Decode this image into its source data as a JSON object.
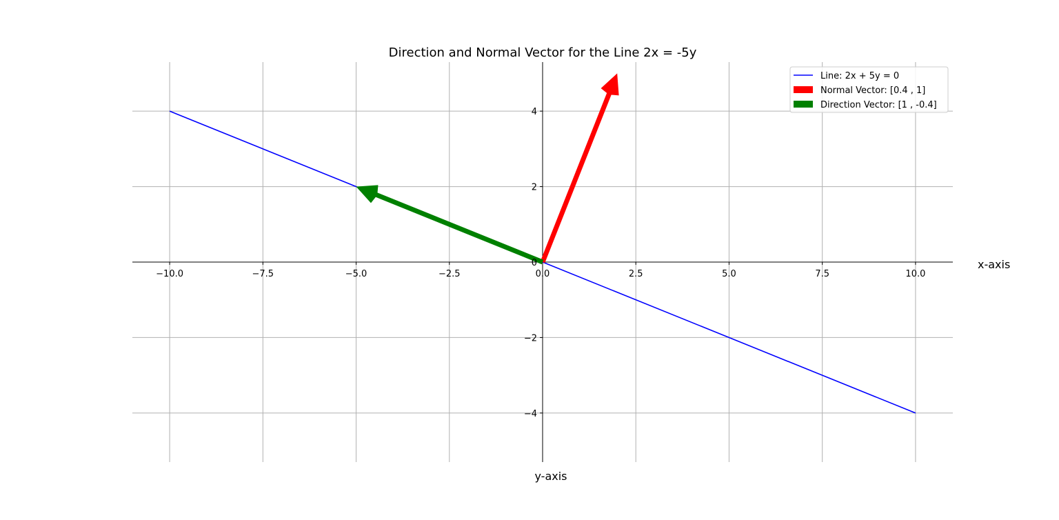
{
  "chart_data": {
    "type": "line",
    "title": "Direction and Normal Vector for the Line 2x = -5y",
    "xlabel": "x-axis",
    "ylabel": "y-axis",
    "xlim": [
      -11,
      11
    ],
    "ylim": [
      -5.3,
      5.3
    ],
    "grid": true,
    "legend_position": "top-right",
    "x_ticks": [
      -10,
      -7.5,
      -5,
      -2.5,
      0,
      2.5,
      5,
      7.5,
      10
    ],
    "x_tick_labels": [
      "−10.0",
      "−7.5",
      "−5.0",
      "−2.5",
      "0.0",
      "2.5",
      "5.0",
      "7.5",
      "10.0"
    ],
    "y_ticks": [
      -4,
      -2,
      0,
      2,
      4
    ],
    "y_tick_labels": [
      "−4",
      "−2",
      "0",
      "2",
      "4"
    ],
    "series": [
      {
        "name": "Line: 2x + 5y = 0",
        "kind": "line",
        "color": "#0000ff",
        "x": [
          -10,
          10
        ],
        "y": [
          4,
          -4
        ]
      }
    ],
    "vectors": [
      {
        "name": "Normal Vector: [0.4 , 1]",
        "color": "#ff0000",
        "origin": [
          0,
          0
        ],
        "components": [
          2,
          5
        ]
      },
      {
        "name": "Direction Vector: [1 , -0.4]",
        "color": "#008000",
        "origin": [
          0,
          0
        ],
        "components": [
          -5,
          2
        ]
      }
    ],
    "colors": {
      "grid": "#b0b0b0",
      "axis": "#000000",
      "legend_border": "#cccccc"
    }
  }
}
